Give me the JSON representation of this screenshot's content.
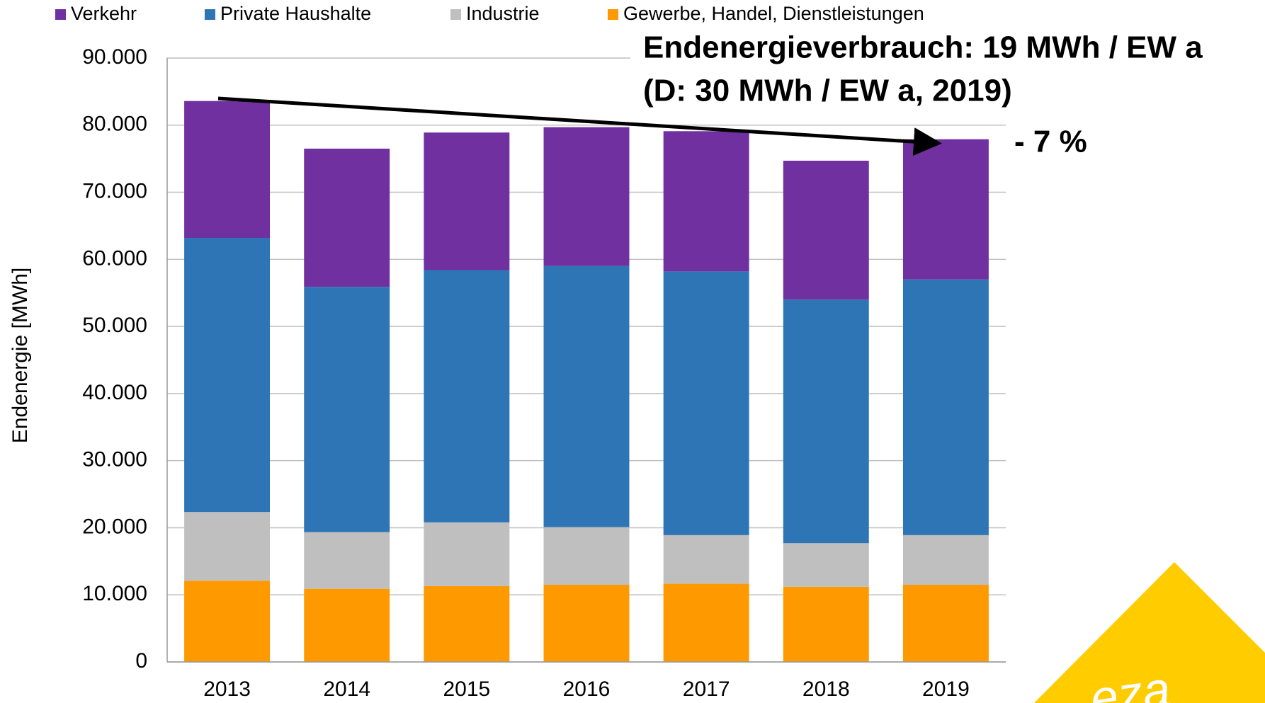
{
  "chart_data": {
    "type": "stacked_bar",
    "y_label": "Endenergie [MWh]",
    "annotations": [
      "Endenergieverbrauch: 19 MWh / EW a",
      "(D: 30 MWh / EW a, 2019)",
      "- 7 %"
    ],
    "logo": "eza",
    "categories": [
      "2013",
      "2014",
      "2015",
      "2016",
      "2017",
      "2018",
      "2019"
    ],
    "series": [
      {
        "name": "Verkehr",
        "color": "#7030a0",
        "values": [
          20400,
          20600,
          20500,
          20700,
          20900,
          20700,
          20900
        ]
      },
      {
        "name": "Private Haushalte",
        "color": "#2e75b6",
        "values": [
          40850,
          36550,
          37600,
          38900,
          39300,
          36300,
          38100
        ]
      },
      {
        "name": "Industrie",
        "color": "#bfbfbf",
        "values": [
          10250,
          8450,
          9500,
          8600,
          7250,
          6500,
          7400
        ]
      },
      {
        "name": "Gewerbe, Handel, Dienstleistungen",
        "color": "#ff9900",
        "values": [
          12100,
          10900,
          11300,
          11500,
          11650,
          11200,
          11500
        ]
      }
    ],
    "ylim": [
      0,
      90000
    ],
    "yticks": [
      0,
      {
        "value": 10000,
        "label": "10.000"
      },
      {
        "value": 20000,
        "label": "20.000"
      },
      {
        "value": 30000,
        "label": "30.000"
      },
      {
        "value": 40000,
        "label": "40.000"
      },
      {
        "value": 50000,
        "label": "50.000"
      },
      {
        "value": 60000,
        "label": "60.000"
      },
      {
        "value": 70000,
        "label": "70.000"
      },
      {
        "value": 80000,
        "label": "80.000"
      },
      {
        "value": 90000,
        "label": "90.000"
      }
    ],
    "grid": true,
    "legend": "top"
  }
}
